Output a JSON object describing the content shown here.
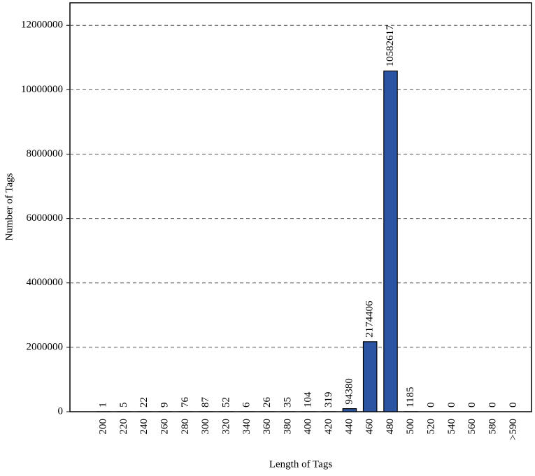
{
  "chart_data": {
    "type": "bar",
    "x_label": "Length of Tags",
    "y_label": "Number of Tags",
    "categories": [
      "200",
      "220",
      "240",
      "260",
      "280",
      "300",
      "320",
      "340",
      "360",
      "380",
      "400",
      "420",
      "440",
      "460",
      "480",
      "500",
      "520",
      "540",
      "560",
      "580",
      ">590"
    ],
    "values": [
      1,
      5,
      22,
      9,
      76,
      87,
      52,
      6,
      26,
      35,
      104,
      319,
      94380,
      2174406,
      10582617,
      1185,
      0,
      0,
      0,
      0,
      0
    ],
    "color": "#2b55a3",
    "ylim": [
      0,
      12700000
    ],
    "yticks": [
      0,
      2000000,
      4000000,
      6000000,
      8000000,
      10000000,
      12000000
    ],
    "grid": true
  }
}
